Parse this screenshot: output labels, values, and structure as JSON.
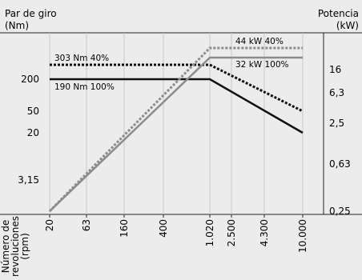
{
  "chart_data": {
    "type": "line",
    "left_axis": {
      "title_line1": "Par de giro",
      "title_line2": "(Nm)",
      "ticks": [
        "200",
        "50",
        "20",
        "3,15"
      ]
    },
    "right_axis": {
      "title_line1": "Potencia",
      "title_line2": "(kW)",
      "ticks": [
        "16",
        "6,3",
        "2,5",
        "0,63",
        "0,25"
      ]
    },
    "x_axis": {
      "label_line1": "Número de",
      "label_line2": "revoluciones",
      "label_line3": "(rpm)",
      "ticks": [
        "20",
        "63",
        "160",
        "400",
        "1.020",
        "2.500",
        "4.300",
        "10.000"
      ]
    },
    "series": [
      {
        "name": "303 Nm 40%",
        "quantity": "torque",
        "style": "dotted",
        "color": "#111111",
        "x": [
          "20",
          "1.020",
          "10.000"
        ],
        "y_label": [
          "303",
          "303",
          "50"
        ]
      },
      {
        "name": "190 Nm 100%",
        "quantity": "torque",
        "style": "solid",
        "color": "#111111",
        "x": [
          "20",
          "1.020",
          "10.000"
        ],
        "y_label": [
          "190",
          "190",
          "20"
        ]
      },
      {
        "name": "44 kW 40%",
        "quantity": "power",
        "style": "dotted",
        "color": "#8c8c8c",
        "x": [
          "20",
          "1.020",
          "10.000"
        ],
        "y_label": [
          "0,25",
          "44",
          "44"
        ]
      },
      {
        "name": "32 kW 100%",
        "quantity": "power",
        "style": "solid",
        "color": "#8c8c8c",
        "x": [
          "20",
          "1.020",
          "10.000"
        ],
        "y_label": [
          "0,25",
          "32",
          "32"
        ]
      }
    ],
    "grid": "vertical lines at x ticks",
    "legend": "inline labels"
  }
}
